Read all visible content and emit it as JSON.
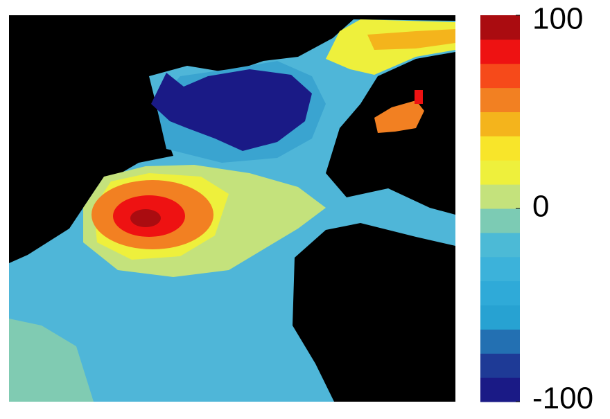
{
  "chart_data": {
    "type": "heatmap-map",
    "colorbar": {
      "clim": [
        -100,
        100
      ],
      "ticks": [
        100,
        0,
        -100
      ],
      "colors": [
        "#1a1a86",
        "#1e3a96",
        "#2370b2",
        "#27a2d2",
        "#2faad8",
        "#3cb2da",
        "#4cbad6",
        "#7ccbb4",
        "#c4e27c",
        "#eef03c",
        "#f8e52a",
        "#f4b41c",
        "#f28022",
        "#f64a1a",
        "#ee1212",
        "#aa0c10"
      ]
    },
    "land_color": "#000000"
  }
}
